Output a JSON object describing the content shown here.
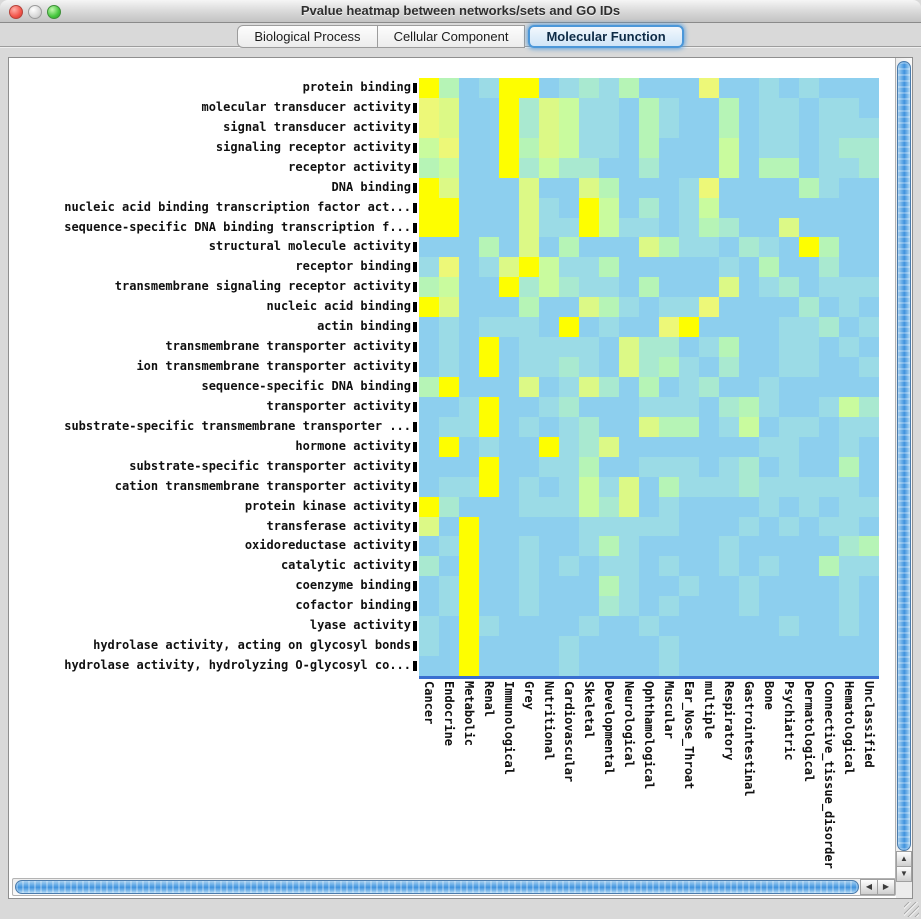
{
  "window": {
    "title": "Pvalue heatmap between networks/sets and GO IDs"
  },
  "tabs": [
    {
      "label": "Biological Process",
      "selected": false
    },
    {
      "label": "Cellular Component",
      "selected": false
    },
    {
      "label": "Molecular Function",
      "selected": true
    }
  ],
  "heatmap": {
    "palette": [
      "#8dcfee",
      "#9bdbe6",
      "#a9e9d0",
      "#b6f4b6",
      "#c9fb9e",
      "#dcf986",
      "#edf878",
      "#fefe00"
    ],
    "palette_note": "index 0 = low (light blue) ... 7 = high (bright yellow)",
    "baseline_color": "#3a6fd0",
    "tick_color": "#000000"
  },
  "chart_data": {
    "type": "heatmap",
    "title": "Pvalue heatmap between networks/sets and GO IDs (Molecular Function)",
    "x_categories": [
      "Cancer",
      "Endocrine",
      "Metabolic",
      "Renal",
      "Immunological",
      "Grey",
      "Nutritional",
      "Cardiovascular",
      "Skeletal",
      "Developmental",
      "Neurological",
      "Ophthamological",
      "Muscular",
      "Ear_Nose_Throat",
      "multiple",
      "Respiratory",
      "Gastrointestinal",
      "Bone",
      "Psychiatric",
      "Dermatological",
      "Connective_tissue_disorder",
      "Hematological",
      "Unclassified"
    ],
    "y_categories": [
      "protein binding",
      "molecular transducer activity",
      "signal transducer activity",
      "signaling receptor activity",
      "receptor activity",
      "DNA binding",
      "nucleic acid binding transcription factor act...",
      "sequence-specific DNA binding transcription f...",
      "structural molecule activity",
      "receptor binding",
      "transmembrane signaling receptor activity",
      "nucleic acid binding",
      "actin binding",
      "transmembrane transporter activity",
      "ion transmembrane transporter activity",
      "sequence-specific DNA binding",
      "transporter activity",
      "substrate-specific transmembrane transporter ...",
      "hormone activity",
      "substrate-specific transporter activity",
      "cation transmembrane transporter activity",
      "protein kinase activity",
      "transferase activity",
      "oxidoreductase activity",
      "catalytic activity",
      "coenzyme binding",
      "cofactor binding",
      "lyase activity",
      "hydrolase activity, acting on glycosyl bonds",
      "hydrolase activity, hydrolyzing O-glycosyl co..."
    ],
    "value_scale": "relative -log10(p-value) intensity level 0 (low, blue) to 7 (high, yellow), read from cell colors",
    "grid": [
      "73017701213000600101000",
      "65007254110310030110110",
      "65007254110310030110111",
      "46007354110300040110122",
      "34007242200200040330112",
      "75000500530001600003100",
      "77000510740201400000000",
      "77000511741101320050000",
      "00030503000531102107300",
      "16015741130000010300200",
      "34007242110300050120111",
      "75000300531011600002010",
      "01011107010067000011201",
      "01070111105220130011010",
      "01070112105231020011001",
      "37000501520301200100000",
      "00170012000111023100142",
      "01170101200533014011011",
      "07010071250000000110010",
      "00070011300111012010030",
      "01170101415031112111110",
      "72000111425010000101011",
      "50700000111110001010110",
      "01700100131000010000023",
      "20700101011010010100311",
      "01700100031001001000010",
      "01700100021010001000010",
      "10710000100100000010010",
      "10700001000010000000000",
      "00700001000010000000000"
    ],
    "legend": "none",
    "grid_lines": false
  },
  "scrollbars": {
    "left_arrow": "◀",
    "right_arrow": "▶",
    "up_arrow": "▲",
    "down_arrow": "▼"
  }
}
